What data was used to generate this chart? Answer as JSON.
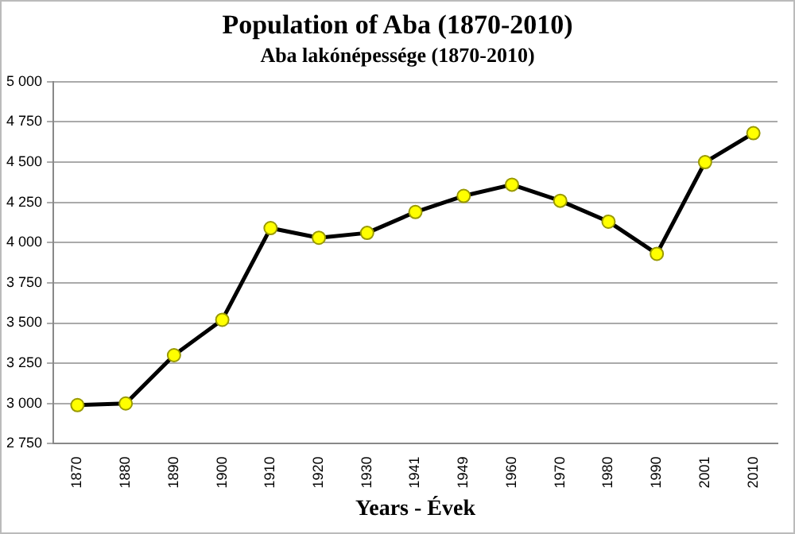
{
  "chart_data": {
    "type": "line",
    "title": "Population of Aba (1870-2010)",
    "subtitle": "Aba lakónépessége (1870-2010)",
    "xlabel": "Years - Évek",
    "categories": [
      "1870",
      "1880",
      "1890",
      "1900",
      "1910",
      "1920",
      "1930",
      "1941",
      "1949",
      "1960",
      "1970",
      "1980",
      "1990",
      "2001",
      "2010"
    ],
    "series": [
      {
        "color": "#000000",
        "values": [
          2990,
          3000,
          3300,
          3520,
          4090,
          4030,
          4060,
          4190,
          4290,
          4360,
          4260,
          4130,
          3930,
          4500,
          4680
        ]
      }
    ],
    "ylim": [
      2750,
      5000
    ],
    "yticks": [
      {
        "value": 2750,
        "label": "2 750"
      },
      {
        "value": 3000,
        "label": "3 000"
      },
      {
        "value": 3250,
        "label": "3 250"
      },
      {
        "value": 3500,
        "label": "3 500"
      },
      {
        "value": 3750,
        "label": "3 750"
      },
      {
        "value": 4000,
        "label": "4 000"
      },
      {
        "value": 4250,
        "label": "4 250"
      },
      {
        "value": 4500,
        "label": "4 500"
      },
      {
        "value": 4750,
        "label": "4 750"
      },
      {
        "value": 5000,
        "label": "5 000"
      }
    ],
    "grid": "y",
    "legend": false,
    "marker": "circle",
    "line_style": "solid"
  }
}
